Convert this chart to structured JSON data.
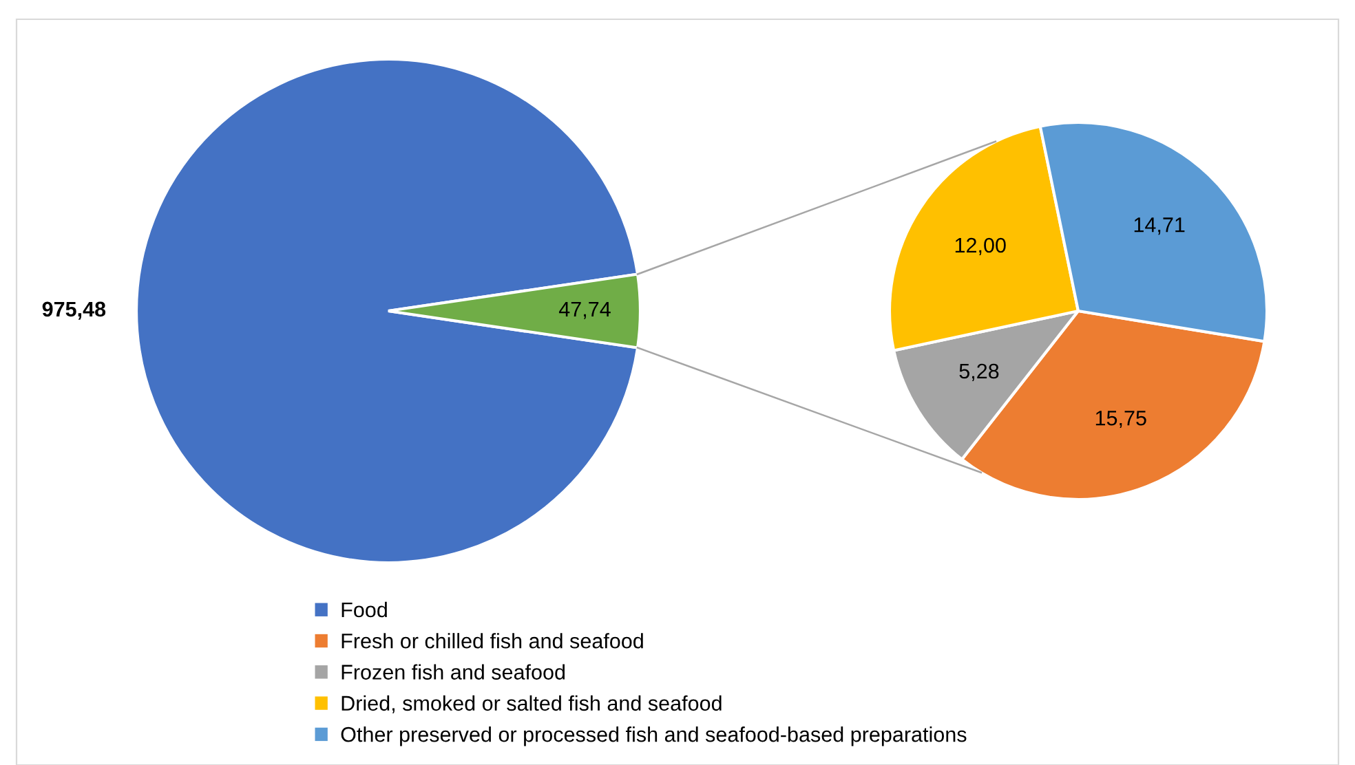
{
  "chart_data": [
    {
      "type": "pie",
      "categories": [
        "Food",
        null
      ],
      "values": [
        975.48,
        47.74
      ],
      "colors": [
        "#4472c4",
        "#70ad47"
      ],
      "value_labels": [
        "975,48",
        "47,74"
      ],
      "legend": "bottom"
    },
    {
      "type": "pie",
      "categories": [
        "Fresh or chilled fish and seafood",
        "Frozen fish and seafood",
        "Dried, smoked or salted fish and seafood",
        "Other preserved or processed fish and seafood-based preparations"
      ],
      "values": [
        15.75,
        5.28,
        12.0,
        14.71
      ],
      "colors": [
        "#ed7d31",
        "#a5a5a5",
        "#ffc000",
        "#5b9bd5"
      ],
      "value_labels": [
        "15,75",
        "5,28",
        "12,00",
        "14,71"
      ],
      "legend": "bottom"
    }
  ]
}
